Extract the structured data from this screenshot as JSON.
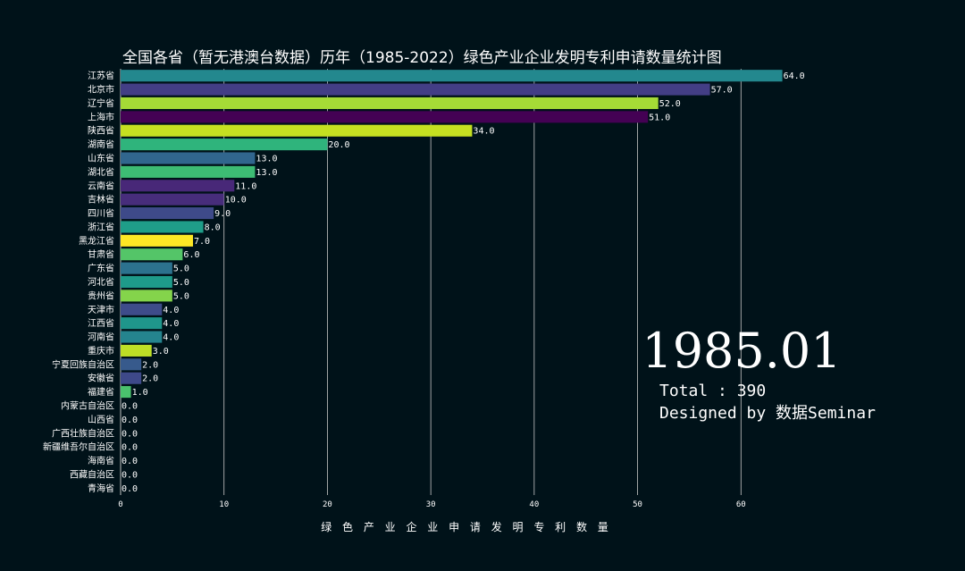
{
  "chart_data": {
    "type": "bar",
    "orientation": "horizontal",
    "title": "全国各省（暂无港澳台数据）历年（1985-2022）绿色产业企业发明专利申请数量统计图",
    "xlabel": "绿 色 产 业 企 业 申 请 发 明 专 利 数 量",
    "ylabel": "",
    "xlim": [
      0,
      70
    ],
    "xticks": [
      0,
      10,
      20,
      30,
      40,
      50,
      60
    ],
    "grid": "vertical",
    "period_label": "1985.01",
    "total_text": "Total : 390",
    "credit_text": "Designed by 数据Seminar",
    "categories": [
      "江苏省",
      "北京市",
      "辽宁省",
      "上海市",
      "陕西省",
      "湖南省",
      "山东省",
      "湖北省",
      "云南省",
      "吉林省",
      "四川省",
      "浙江省",
      "黑龙江省",
      "甘肃省",
      "广东省",
      "河北省",
      "贵州省",
      "天津市",
      "江西省",
      "河南省",
      "重庆市",
      "宁夏回族自治区",
      "安徽省",
      "福建省",
      "内蒙古自治区",
      "山西省",
      "广西壮族自治区",
      "新疆维吾尔自治区",
      "海南省",
      "西藏自治区",
      "青海省"
    ],
    "values": [
      64.0,
      57.0,
      52.0,
      51.0,
      34.0,
      20.0,
      13.0,
      13.0,
      11.0,
      10.0,
      9.0,
      8.0,
      7.0,
      6.0,
      5.0,
      5.0,
      5.0,
      4.0,
      4.0,
      4.0,
      3.0,
      2.0,
      2.0,
      1.0,
      0.0,
      0.0,
      0.0,
      0.0,
      0.0,
      0.0,
      0.0
    ],
    "value_labels": [
      "64.0",
      "57.0",
      "52.0",
      "51.0",
      "34.0",
      "20.0",
      "13.0",
      "13.0",
      "11.0",
      "10.0",
      "9.0",
      "8.0",
      "7.0",
      "6.0",
      "5.0",
      "5.0",
      "5.0",
      "4.0",
      "4.0",
      "4.0",
      "3.0",
      "2.0",
      "2.0",
      "1.0",
      "0.0",
      "0.0",
      "0.0",
      "0.0",
      "0.0",
      "0.0",
      "0.0"
    ],
    "colors": [
      "#23888e",
      "#433e85",
      "#a5db36",
      "#440154",
      "#c5e021",
      "#2fb47c",
      "#31668e",
      "#3dbc74",
      "#482878",
      "#472d7b",
      "#3e4a89",
      "#1f9e89",
      "#fde725",
      "#54c568",
      "#2c728e",
      "#1e9b8a",
      "#84d44b",
      "#3e4c8a",
      "#1f968b",
      "#25848e",
      "#bddf26",
      "#375a8c",
      "#3e4989",
      "#4ac16d",
      "#31688e",
      "#2a768e",
      "#472c7a",
      "#2a778e",
      "#38598c",
      "#1fa088",
      "#31678e"
    ],
    "grid_color": "#c8c8c8",
    "bg_color": "#001219"
  }
}
